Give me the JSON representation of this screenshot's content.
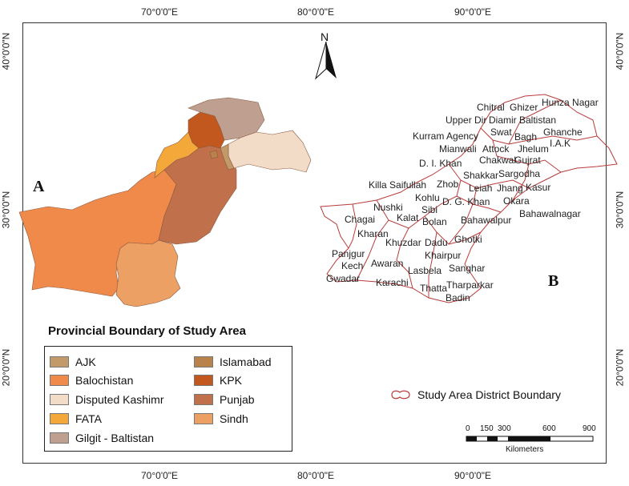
{
  "axes": {
    "top_ticks": [
      "70°0'0\"E",
      "80°0'0\"E",
      "90°0'0\"E"
    ],
    "bottom_ticks": [
      "70°0'0\"E",
      "80°0'0\"E",
      "90°0'0\"E"
    ],
    "left_ticks": [
      "40°0'0\"N",
      "30°0'0\"N",
      "20°0'0\"N"
    ],
    "right_ticks": [
      "40°0'0\"N",
      "30°0'0\"N",
      "20°0'0\"N"
    ]
  },
  "north_label": "N",
  "panel_labels": {
    "a": "A",
    "b": "B"
  },
  "legend": {
    "title": "Provincial Boundary of Study Area",
    "items": [
      {
        "label": "AJK",
        "color": "#c29a6a"
      },
      {
        "label": "Balochistan",
        "color": "#f08a4b"
      },
      {
        "label": "Disputed Kashimr",
        "color": "#f2dcc8"
      },
      {
        "label": "FATA",
        "color": "#f4a83a"
      },
      {
        "label": "Gilgit - Baltistan",
        "color": "#bfa090"
      },
      {
        "label": "Islamabad",
        "color": "#b9824a"
      },
      {
        "label": "KPK",
        "color": "#c3581f"
      },
      {
        "label": "Punjab",
        "color": "#c0704a"
      },
      {
        "label": "Sindh",
        "color": "#eda064"
      }
    ]
  },
  "boundary_legend": {
    "label": "Study Area District Boundary",
    "color": "#b83c3c"
  },
  "scale_bar": {
    "ticks": [
      "0",
      "150",
      "300",
      "600",
      "900"
    ],
    "unit": "Kilometers"
  },
  "districts": [
    "Hunza Nagar",
    "Chitral",
    "Ghizer",
    "Upper Dir",
    "Diamir",
    "Baltistan",
    "Swat",
    "Bagh",
    "Ghanche",
    "Kurram Agency",
    "I.A.K",
    "Mianwali",
    "Attock",
    "Jhelum",
    "D. I. Khan",
    "Chakwal",
    "Gujrat",
    "Shakkar",
    "Sargodha",
    "Killa Saifullah",
    "Zhob",
    "Leiah",
    "Jhang",
    "Kasur",
    "Nushki",
    "Kohlu",
    "D. G. Khan",
    "Okara",
    "Chagai",
    "Sibi",
    "Kalat",
    "Bahawalnagar",
    "Bolan",
    "Bahawalpur",
    "Kharan",
    "Khuzdar",
    "Dadu",
    "Ghotki",
    "Panjgur",
    "Khairpur",
    "Kech",
    "Awaran",
    "Sanghar",
    "Lasbela",
    "Gwadar",
    "Karachi",
    "Tharparkar",
    "Thatta",
    "Badin"
  ]
}
